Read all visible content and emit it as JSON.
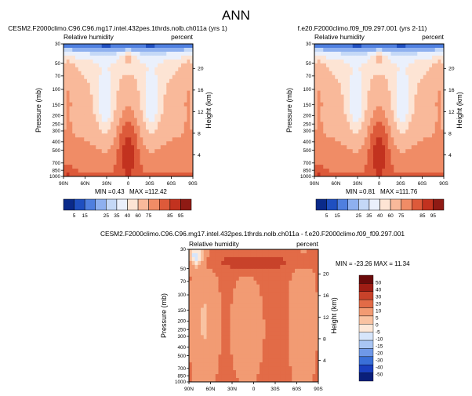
{
  "page": {
    "title": "ANN"
  },
  "palettes": {
    "full": [
      "#0a2a8a",
      "#1f4fc0",
      "#4f7fdf",
      "#8eb0ef",
      "#c4d8f7",
      "#eaf0fc",
      "#fde4d4",
      "#f9b99a",
      "#f08c66",
      "#dd5a3a",
      "#c2321f",
      "#8f1a14"
    ],
    "diff": [
      "#0a1f7a",
      "#1a3fbf",
      "#3a6fd8",
      "#6f98e8",
      "#a9c5f3",
      "#d6e5fb",
      "#fde8d8",
      "#f9c3a2",
      "#f29b73",
      "#e26b47",
      "#c8422a",
      "#9e1d14",
      "#6a0a0a"
    ]
  },
  "chart_data": [
    {
      "type": "heatmap",
      "title": "CESM2.F2000climo.C96.C96.mg17.intel.432pes.1thrds.nolb.ch011a (yrs 1)",
      "field_label": "Relative humidity",
      "units": "percent",
      "ylabel": "Pressure (mb)",
      "y2label": "Height (km)",
      "x_ticks": [
        "90N",
        "60N",
        "30N",
        "0",
        "30S",
        "60S",
        "90S"
      ],
      "p_ticks": [
        {
          "v": 1000,
          "t": "1000"
        },
        {
          "v": 850,
          "t": "850"
        },
        {
          "v": 700,
          "t": "700"
        },
        {
          "v": 500,
          "t": "500"
        },
        {
          "v": 400,
          "t": "400"
        },
        {
          "v": 300,
          "t": "300"
        },
        {
          "v": 250,
          "t": "250"
        },
        {
          "v": 200,
          "t": "200"
        },
        {
          "v": 150,
          "t": "150"
        },
        {
          "v": 100,
          "t": "100"
        },
        {
          "v": 70,
          "t": "70"
        },
        {
          "v": 50,
          "t": "50"
        },
        {
          "v": 30,
          "t": "30"
        }
      ],
      "h_ticks": [
        "4",
        "8",
        "12",
        "16",
        "20"
      ],
      "stats": {
        "min_label": "MIN =",
        "min": "0.43",
        "max_label": "MAX =",
        "max": "112.42"
      },
      "colorbar_levels": [
        "5",
        "15",
        "25",
        "35",
        "40",
        "60",
        "75",
        "85",
        "95"
      ],
      "clevels": [
        5,
        15,
        25,
        35,
        40,
        50,
        60,
        75,
        85,
        95,
        105
      ]
    },
    {
      "type": "heatmap",
      "title": "f.e20.F2000climo.f09_f09.297.001 (yrs 2-11)",
      "field_label": "Relative humidity",
      "units": "percent",
      "ylabel": "Pressure (mb)",
      "y2label": "Height (km)",
      "x_ticks": [
        "90N",
        "60N",
        "30N",
        "0",
        "30S",
        "60S",
        "90S"
      ],
      "p_ticks": [
        {
          "v": 1000,
          "t": "1000"
        },
        {
          "v": 850,
          "t": "850"
        },
        {
          "v": 700,
          "t": "700"
        },
        {
          "v": 500,
          "t": "500"
        },
        {
          "v": 400,
          "t": "400"
        },
        {
          "v": 300,
          "t": "300"
        },
        {
          "v": 250,
          "t": "250"
        },
        {
          "v": 200,
          "t": "200"
        },
        {
          "v": 150,
          "t": "150"
        },
        {
          "v": 100,
          "t": "100"
        },
        {
          "v": 70,
          "t": "70"
        },
        {
          "v": 50,
          "t": "50"
        },
        {
          "v": 30,
          "t": "30"
        }
      ],
      "h_ticks": [
        "4",
        "8",
        "12",
        "16",
        "20"
      ],
      "stats": {
        "min_label": "MIN =",
        "min": "0.81",
        "max_label": "MAX =",
        "max": "111.76"
      },
      "colorbar_levels": [
        "5",
        "15",
        "25",
        "35",
        "40",
        "60",
        "75",
        "85",
        "95"
      ],
      "clevels": [
        5,
        15,
        25,
        35,
        40,
        50,
        60,
        75,
        85,
        95,
        105
      ]
    },
    {
      "type": "heatmap",
      "title": "CESM2.F2000climo.C96.C96.mg17.intel.432pes.1thrds.nolb.ch011a - f.e20.F2000climo.f09_f09.297.001",
      "field_label": "Relative humidity",
      "units": "percent",
      "ylabel": "Pressure (mb)",
      "y2label": "Height (km)",
      "x_ticks": [
        "90N",
        "60N",
        "30N",
        "0",
        "30S",
        "60S",
        "90S"
      ],
      "p_ticks": [
        {
          "v": 1000,
          "t": "1000"
        },
        {
          "v": 850,
          "t": "850"
        },
        {
          "v": 700,
          "t": "700"
        },
        {
          "v": 500,
          "t": "500"
        },
        {
          "v": 400,
          "t": "400"
        },
        {
          "v": 300,
          "t": "300"
        },
        {
          "v": 250,
          "t": "250"
        },
        {
          "v": 200,
          "t": "200"
        },
        {
          "v": 150,
          "t": "150"
        },
        {
          "v": 100,
          "t": "100"
        },
        {
          "v": 70,
          "t": "70"
        },
        {
          "v": 50,
          "t": "50"
        },
        {
          "v": 30,
          "t": "30"
        }
      ],
      "h_ticks": [
        "4",
        "8",
        "12",
        "16",
        "20"
      ],
      "stats": {
        "text": "MIN = -23.26  MAX = 11.34"
      },
      "colorbar_levels": [
        "50",
        "40",
        "30",
        "20",
        "10",
        "5",
        "0",
        "-5",
        "-10",
        "-15",
        "-20",
        "-30",
        "-40",
        "-50"
      ],
      "clevels": [
        -60,
        -50,
        -40,
        -30,
        -20,
        -15,
        -10,
        -5,
        0,
        5,
        10,
        20,
        30,
        40,
        50,
        60
      ]
    }
  ]
}
